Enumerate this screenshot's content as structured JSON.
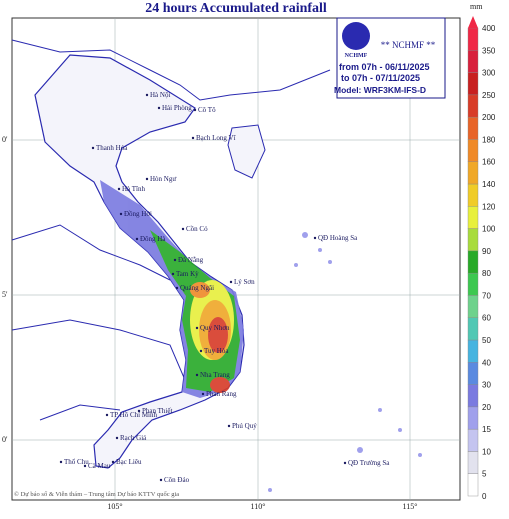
{
  "header": {
    "title": "24 hours Accumulated rainfall"
  },
  "info": {
    "logo": "NCHMF",
    "org": "** NCHMF **",
    "from": "from 07h - 06/11/2025",
    "to": "to 07h - 07/11/2025",
    "model": "Model: WRF3KM-IFS-D"
  },
  "legend": {
    "unit": "mm",
    "levels": [
      0,
      5,
      10,
      15,
      20,
      30,
      40,
      50,
      60,
      70,
      80,
      90,
      100,
      120,
      140,
      160,
      180,
      200,
      250,
      300,
      350,
      400
    ],
    "colors": [
      "#ffffff",
      "#e2e2ee",
      "#c4c4f0",
      "#a0a0ec",
      "#7a7ae0",
      "#5a8ae0",
      "#46b4e0",
      "#50c8b4",
      "#6ed28c",
      "#3cc850",
      "#28aa28",
      "#a8dc3c",
      "#e8f03c",
      "#f0cc28",
      "#f0a828",
      "#f08a28",
      "#e86428",
      "#d83c28",
      "#c82020",
      "#d8203c",
      "#f02846"
    ]
  },
  "axes": {
    "lon": [
      "105°",
      "110°",
      "115°"
    ],
    "lat": [
      "0'",
      "5'",
      "0'"
    ]
  },
  "places": [
    "Cô Tô",
    "Bạch Long Vĩ",
    "Thanh Hóa",
    "Hòn Ngư",
    "Hà Tĩnh",
    "Đồng Hới",
    "Cồn Cỏ",
    "Đông Hà",
    "Đà Nẵng",
    "Tam Kỳ",
    "Lý Sơn",
    "Quảng Ngãi",
    "Quy Nhơn",
    "Tuy Hòa",
    "Nha Trang",
    "Phan Rang",
    "Phan Thiết",
    "Phú Quý",
    "TP Hồ Chí Minh",
    "Côn Đảo",
    "Thổ Chu",
    "Bạc Liêu",
    "Cà Mau",
    "Rạch Giá",
    "QĐ Hoàng Sa",
    "QĐ Trường Sa",
    "Hà Nội",
    "Hải Phòng"
  ],
  "credit": "© Dự báo số & Viễn thám – Trung tâm Dự báo KTTV quốc gia"
}
